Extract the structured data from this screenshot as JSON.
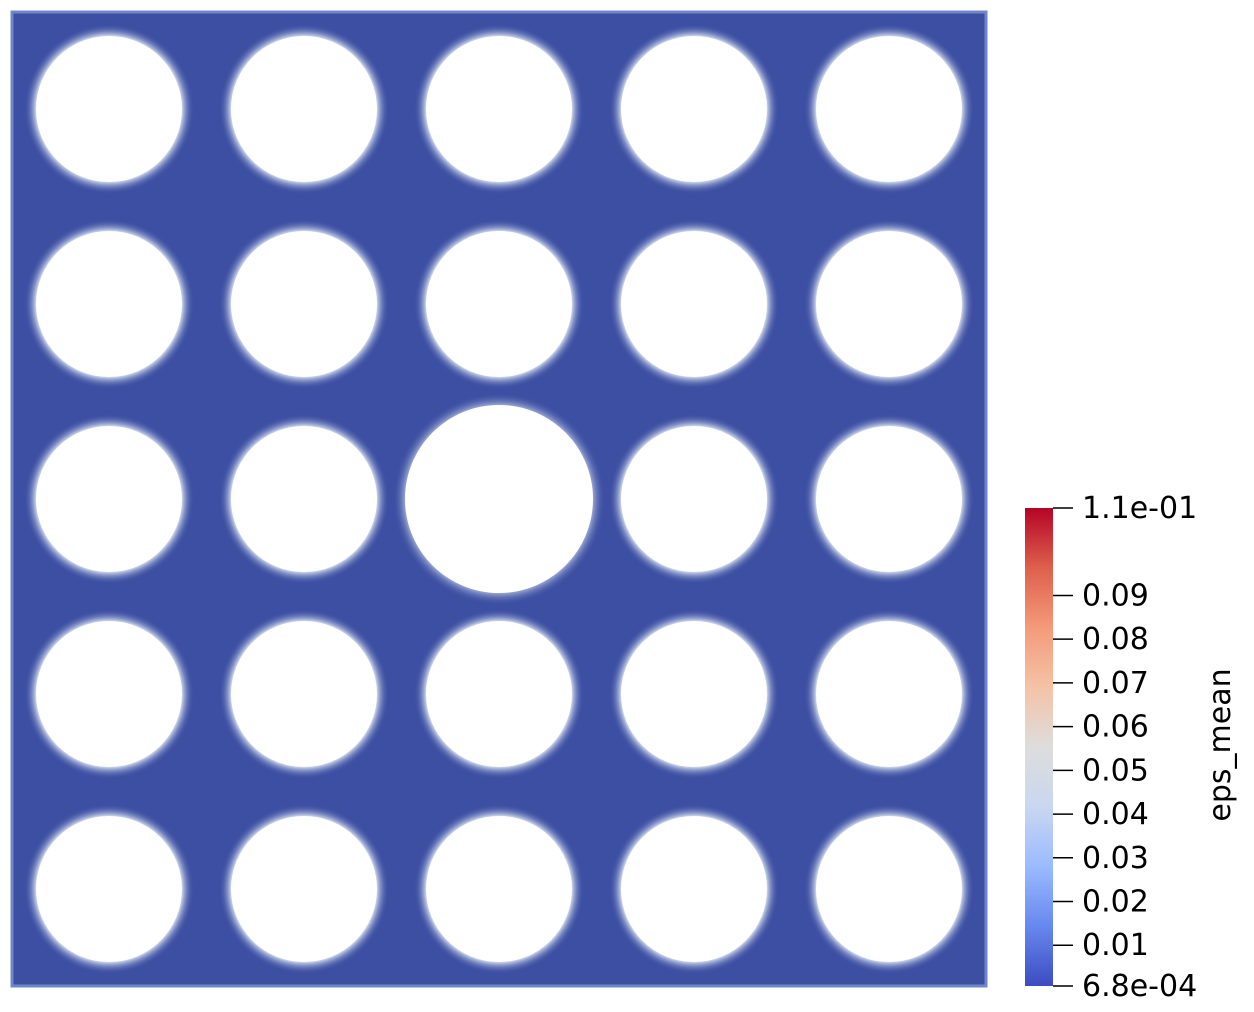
{
  "field": {
    "name": "eps_mean",
    "range_max_label": "1.1e-01",
    "range_min_label": "6.8e-04",
    "range_min": 0.00068,
    "range_max": 0.11
  },
  "colorbar": {
    "title": "eps_mean",
    "ticks": [
      {
        "value": 0.09,
        "label": "0.09"
      },
      {
        "value": 0.08,
        "label": "0.08"
      },
      {
        "value": 0.07,
        "label": "0.07"
      },
      {
        "value": 0.06,
        "label": "0.06"
      },
      {
        "value": 0.05,
        "label": "0.05"
      },
      {
        "value": 0.04,
        "label": "0.04"
      },
      {
        "value": 0.03,
        "label": "0.03"
      },
      {
        "value": 0.02,
        "label": "0.02"
      },
      {
        "value": 0.01,
        "label": "0.01"
      }
    ],
    "colormap": [
      "#3b4cc0",
      "#6788ee",
      "#9abbff",
      "#c9d7f0",
      "#dddddd",
      "#f4c3a6",
      "#f49a7b",
      "#de604d",
      "#b40426"
    ]
  },
  "plate": {
    "background_color": "#3d4fa3",
    "hole_grid": {
      "rows": 5,
      "cols": 5,
      "enlarged_hole": {
        "row": 3,
        "col": 3
      }
    }
  }
}
